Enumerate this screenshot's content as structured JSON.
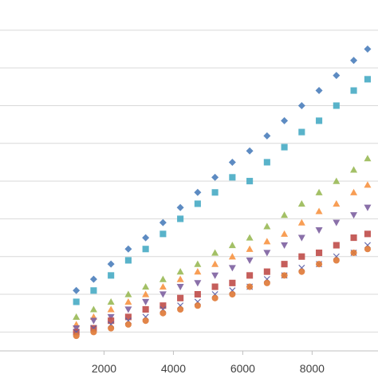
{
  "chart_data": {
    "type": "scatter",
    "title": "",
    "xlabel": "",
    "ylabel": "",
    "grid": true,
    "legend": "none",
    "x_ticks": [
      2000,
      4000,
      6000,
      8000
    ],
    "x_tick_labels": [
      "2000",
      "4000",
      "6000",
      "8000"
    ],
    "xlim": [
      -1000,
      9900
    ],
    "ylim": [
      0,
      9.3
    ],
    "y_gridlines": [
      0.5,
      1.5,
      2.5,
      3.5,
      4.5,
      5.5,
      6.5,
      7.5,
      8.5,
      9.5
    ],
    "series": [
      {
        "marker": "diamond",
        "color": "#4f81bd",
        "points": [
          [
            1200,
            1.6
          ],
          [
            1700,
            1.9
          ],
          [
            2200,
            2.3
          ],
          [
            2700,
            2.7
          ],
          [
            3200,
            3.0
          ],
          [
            3700,
            3.4
          ],
          [
            4200,
            3.8
          ],
          [
            4700,
            4.2
          ],
          [
            5200,
            4.6
          ],
          [
            5700,
            5.0
          ],
          [
            6200,
            5.3
          ],
          [
            6700,
            5.7
          ],
          [
            7200,
            6.1
          ],
          [
            7700,
            6.5
          ],
          [
            8200,
            6.9
          ],
          [
            8700,
            7.3
          ],
          [
            9200,
            7.7
          ],
          [
            9600,
            8.0
          ]
        ]
      },
      {
        "marker": "square",
        "color": "#4bacc6",
        "points": [
          [
            1200,
            1.3
          ],
          [
            1700,
            1.6
          ],
          [
            2200,
            2.0
          ],
          [
            2700,
            2.4
          ],
          [
            3200,
            2.7
          ],
          [
            3700,
            3.1
          ],
          [
            4200,
            3.5
          ],
          [
            4700,
            3.9
          ],
          [
            5200,
            4.2
          ],
          [
            5700,
            4.6
          ],
          [
            6200,
            4.5
          ],
          [
            6700,
            5.0
          ],
          [
            7200,
            5.4
          ],
          [
            7700,
            5.8
          ],
          [
            8200,
            6.1
          ],
          [
            8700,
            6.5
          ],
          [
            9200,
            6.9
          ],
          [
            9600,
            7.2
          ]
        ]
      },
      {
        "marker": "triangle",
        "color": "#9bbb59",
        "points": [
          [
            1200,
            0.9
          ],
          [
            1700,
            1.1
          ],
          [
            2200,
            1.3
          ],
          [
            2700,
            1.5
          ],
          [
            3200,
            1.7
          ],
          [
            3700,
            1.9
          ],
          [
            4200,
            2.1
          ],
          [
            4700,
            2.3
          ],
          [
            5200,
            2.6
          ],
          [
            5700,
            2.8
          ],
          [
            6200,
            3.0
          ],
          [
            6700,
            3.3
          ],
          [
            7200,
            3.6
          ],
          [
            7700,
            3.9
          ],
          [
            8200,
            4.2
          ],
          [
            8700,
            4.5
          ],
          [
            9200,
            4.8
          ],
          [
            9600,
            5.1
          ]
        ]
      },
      {
        "marker": "triangle",
        "color": "#f79646",
        "points": [
          [
            1200,
            0.7
          ],
          [
            1700,
            0.9
          ],
          [
            2200,
            1.1
          ],
          [
            2700,
            1.3
          ],
          [
            3200,
            1.5
          ],
          [
            3700,
            1.7
          ],
          [
            4200,
            1.9
          ],
          [
            4700,
            2.1
          ],
          [
            5200,
            2.3
          ],
          [
            5700,
            2.5
          ],
          [
            6200,
            2.7
          ],
          [
            6700,
            2.9
          ],
          [
            7200,
            3.1
          ],
          [
            7700,
            3.4
          ],
          [
            8200,
            3.7
          ],
          [
            8700,
            3.9
          ],
          [
            9200,
            4.2
          ],
          [
            9600,
            4.4
          ]
        ]
      },
      {
        "marker": "triangle-down",
        "color": "#8064a2",
        "points": [
          [
            1200,
            0.6
          ],
          [
            1700,
            0.8
          ],
          [
            2200,
            0.9
          ],
          [
            2700,
            1.1
          ],
          [
            3200,
            1.3
          ],
          [
            3700,
            1.5
          ],
          [
            4200,
            1.7
          ],
          [
            4700,
            1.8
          ],
          [
            5200,
            2.0
          ],
          [
            5700,
            2.2
          ],
          [
            6200,
            2.4
          ],
          [
            6700,
            2.6
          ],
          [
            7200,
            2.8
          ],
          [
            7700,
            3.0
          ],
          [
            8200,
            3.2
          ],
          [
            8700,
            3.4
          ],
          [
            9200,
            3.6
          ],
          [
            9600,
            3.8
          ]
        ]
      },
      {
        "marker": "square",
        "color": "#c0504d",
        "points": [
          [
            1200,
            0.5
          ],
          [
            1700,
            0.6
          ],
          [
            2200,
            0.8
          ],
          [
            2700,
            0.9
          ],
          [
            3200,
            1.1
          ],
          [
            3700,
            1.2
          ],
          [
            4200,
            1.4
          ],
          [
            4700,
            1.5
          ],
          [
            5200,
            1.7
          ],
          [
            5700,
            1.8
          ],
          [
            6200,
            2.0
          ],
          [
            6700,
            2.1
          ],
          [
            7200,
            2.3
          ],
          [
            7700,
            2.5
          ],
          [
            8200,
            2.6
          ],
          [
            8700,
            2.8
          ],
          [
            9200,
            3.0
          ],
          [
            9600,
            3.1
          ]
        ]
      },
      {
        "marker": "x",
        "color": "#5b5fa8",
        "points": [
          [
            1200,
            0.5
          ],
          [
            1700,
            0.6
          ],
          [
            2200,
            0.7
          ],
          [
            2700,
            0.8
          ],
          [
            3200,
            0.9
          ],
          [
            3700,
            1.1
          ],
          [
            4200,
            1.2
          ],
          [
            4700,
            1.3
          ],
          [
            5200,
            1.5
          ],
          [
            5700,
            1.6
          ],
          [
            6200,
            1.7
          ],
          [
            6700,
            1.9
          ],
          [
            7200,
            2.0
          ],
          [
            7700,
            2.2
          ],
          [
            8200,
            2.3
          ],
          [
            8700,
            2.5
          ],
          [
            9200,
            2.6
          ],
          [
            9600,
            2.8
          ]
        ]
      },
      {
        "marker": "circle",
        "color": "#e07b39",
        "points": [
          [
            1200,
            0.4
          ],
          [
            1700,
            0.5
          ],
          [
            2200,
            0.6
          ],
          [
            2700,
            0.7
          ],
          [
            3200,
            0.8
          ],
          [
            3700,
            1.0
          ],
          [
            4200,
            1.1
          ],
          [
            4700,
            1.2
          ],
          [
            5200,
            1.4
          ],
          [
            5700,
            1.5
          ],
          [
            6200,
            1.7
          ],
          [
            6700,
            1.8
          ],
          [
            7200,
            2.0
          ],
          [
            7700,
            2.1
          ],
          [
            8200,
            2.3
          ],
          [
            8700,
            2.4
          ],
          [
            9200,
            2.6
          ],
          [
            9600,
            2.7
          ]
        ]
      }
    ]
  }
}
